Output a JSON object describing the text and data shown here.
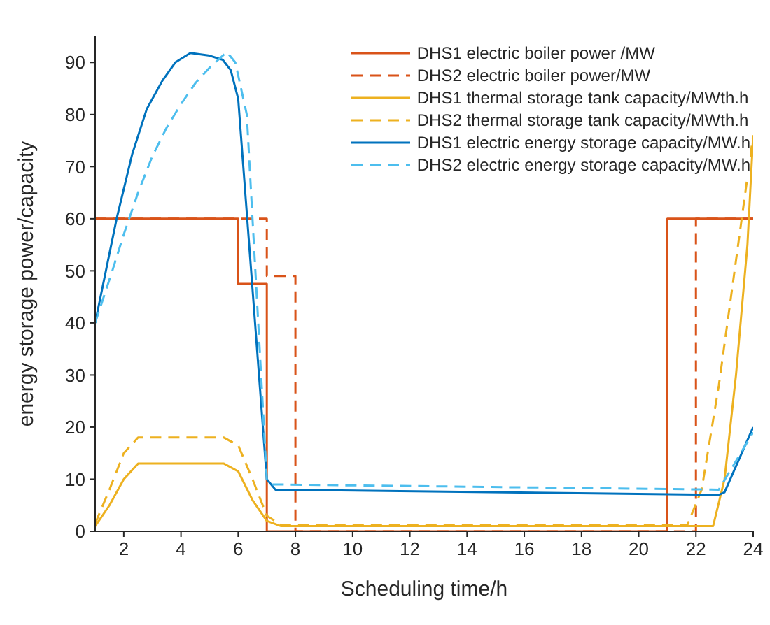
{
  "chart_data": {
    "type": "line",
    "xlabel": "Scheduling time/h",
    "ylabel": "energy storage power/capacity",
    "xlim": [
      1,
      24
    ],
    "xticks": [
      2,
      4,
      6,
      8,
      10,
      12,
      14,
      16,
      18,
      20,
      22,
      24
    ],
    "ylim": [
      0,
      95
    ],
    "yticks": [
      0,
      10,
      20,
      30,
      40,
      50,
      60,
      70,
      80,
      90
    ],
    "legend": "top right",
    "marker": "none",
    "series": [
      {
        "name": "DHS1 electric boiler power /MW",
        "color": "#d95319",
        "line_style": "solid",
        "x": [
          1,
          6,
          6,
          7,
          7,
          21,
          21,
          24
        ],
        "values": [
          60,
          60,
          47.5,
          47.5,
          0,
          0,
          60,
          60
        ]
      },
      {
        "name": "DHS2 electric boiler power/MW",
        "color": "#d95319",
        "line_style": "dashed",
        "x": [
          1,
          7,
          7,
          8,
          8,
          22,
          22,
          24
        ],
        "values": [
          60,
          60,
          49,
          49,
          0,
          0,
          60,
          60
        ]
      },
      {
        "name": "DHS1 thermal storage tank capacity/MWth.h",
        "color": "#edb120",
        "line_style": "solid",
        "x": [
          1,
          1.5,
          2,
          2.5,
          5.5,
          6,
          6.5,
          7,
          7.5,
          22.6,
          23,
          23.4,
          23.8,
          24
        ],
        "values": [
          1,
          5,
          10,
          13,
          13,
          11.5,
          6,
          2,
          1,
          1,
          10,
          30,
          55,
          76
        ]
      },
      {
        "name": "DHS2 thermal storage tank capacity/MWth.h",
        "color": "#edb120",
        "line_style": "dashed",
        "x": [
          1,
          1.5,
          2,
          2.5,
          5.5,
          6,
          6.5,
          7,
          7.5,
          21.7,
          22.2,
          22.8,
          23.4,
          24
        ],
        "values": [
          1.5,
          8,
          15,
          18,
          18,
          16.5,
          10,
          3,
          1.2,
          1.2,
          8,
          28,
          52,
          76
        ]
      },
      {
        "name": "DHS1 electric energy storage capacity/MW.h",
        "color": "#0072bd",
        "line_style": "solid",
        "x": [
          1,
          1.75,
          2.3,
          2.8,
          3.35,
          3.8,
          4.33,
          5,
          5.46,
          5.74,
          6,
          7,
          7.3,
          22.8,
          23,
          24
        ],
        "values": [
          40,
          60,
          72.5,
          81,
          86.5,
          90,
          91.8,
          91.3,
          90.5,
          88.5,
          83,
          10,
          8,
          7,
          7.5,
          20
        ]
      },
      {
        "name": "DHS2 electric energy storage capacity/MW.h",
        "color": "#4dbeee",
        "line_style": "dashed",
        "x": [
          1,
          1.6,
          2,
          2.5,
          3,
          3.5,
          4,
          4.5,
          5,
          5.6,
          5.9,
          6.3,
          7,
          7.2,
          22.8,
          24
        ],
        "values": [
          40,
          50,
          57,
          65,
          72,
          77.5,
          82,
          86,
          89,
          92,
          90,
          80,
          10,
          9,
          8,
          19
        ]
      }
    ]
  }
}
